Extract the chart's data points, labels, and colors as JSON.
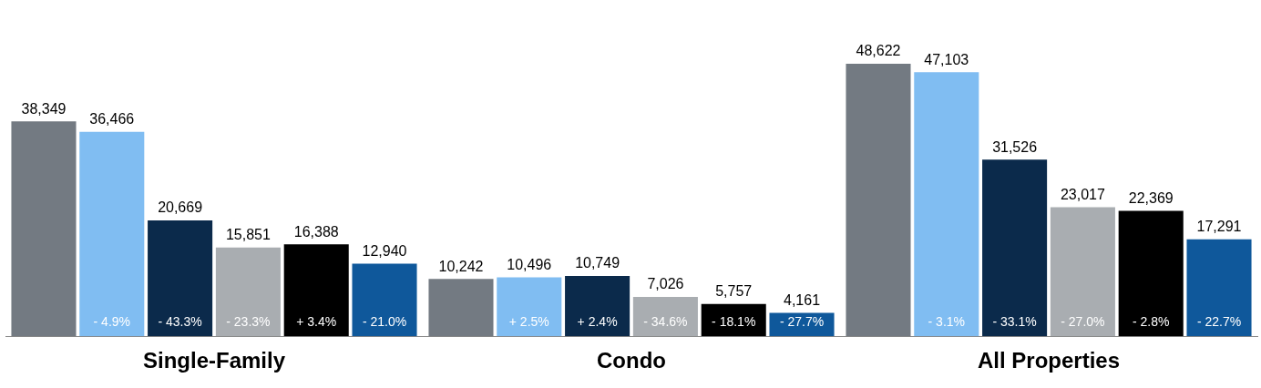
{
  "chart_data": {
    "type": "bar",
    "categories": [
      "Single-Family",
      "Condo",
      "All Properties"
    ],
    "series": [
      {
        "color": "#737a82",
        "values": [
          38349,
          10242,
          48622
        ],
        "value_labels": [
          "38,349",
          "10,242",
          "48,622"
        ]
      },
      {
        "color": "#80bdf2",
        "values": [
          36466,
          10496,
          47103
        ],
        "value_labels": [
          "36,466",
          "10,496",
          "47,103"
        ]
      },
      {
        "color": "#0b2a4b",
        "values": [
          20669,
          10749,
          31526
        ],
        "value_labels": [
          "20,669",
          "10,749",
          "31,526"
        ]
      },
      {
        "color": "#a9adb1",
        "values": [
          15851,
          7026,
          23017
        ],
        "value_labels": [
          "15,851",
          "7,026",
          "23,017"
        ]
      },
      {
        "color": "#000000",
        "values": [
          16388,
          5757,
          22369
        ],
        "value_labels": [
          "16,388",
          "5,757",
          "22,369"
        ]
      },
      {
        "color": "#0f589b",
        "values": [
          12940,
          4161,
          17291
        ],
        "value_labels": [
          "12,940",
          "4,161",
          "17,291"
        ]
      }
    ],
    "annotations": [
      "- 4.9%",
      "- 43.3%",
      "- 23.3%",
      "+ 3.4%",
      "- 21.0%",
      "+ 2.5%",
      "+ 2.4%",
      "- 34.6%",
      "- 18.1%",
      "- 27.7%",
      "- 3.1%",
      "- 33.1%",
      "- 27.0%",
      "- 2.8%",
      "- 22.7%"
    ],
    "grid": false,
    "legend": false
  }
}
